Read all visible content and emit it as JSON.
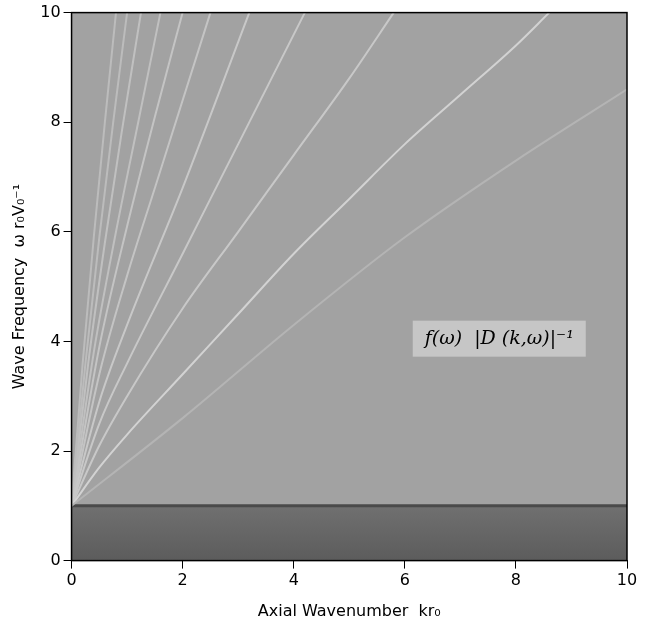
{
  "chart_data": {
    "type": "line",
    "xlabel": "Axial Wavenumber  kr₀",
    "ylabel": "Wave Frequency  ω r₀V₀⁻¹",
    "annotations": [
      "f(ω)  |D (k,ω)|⁻¹"
    ],
    "xlim": [
      0,
      10
    ],
    "ylim": [
      0,
      10
    ],
    "xticks": [
      0,
      2,
      4,
      6,
      8,
      10
    ],
    "yticks": [
      0,
      2,
      4,
      6,
      8,
      10
    ],
    "grid": false,
    "cutoff_frequency": 1,
    "series": [
      {
        "color": "#b4b4b4",
        "x": [
          0,
          2,
          4,
          6,
          8,
          10
        ],
        "values": [
          1,
          2.6,
          4.3,
          5.9,
          7.3,
          8.6
        ]
      },
      {
        "color": "#d2d2d2",
        "x": [
          0,
          0.5,
          1,
          2,
          3,
          4,
          5,
          6,
          7,
          8,
          8.6
        ],
        "values": [
          1,
          1.7,
          2.3,
          3.4,
          4.5,
          5.6,
          6.6,
          7.6,
          8.5,
          9.4,
          10
        ]
      },
      {
        "color": "#c8c8c8",
        "x": [
          0,
          0.5,
          1,
          2,
          3,
          4,
          5,
          5.8
        ],
        "values": [
          1,
          2.1,
          3.0,
          4.6,
          6.0,
          7.4,
          8.8,
          10
        ]
      },
      {
        "color": "#c8c8c8",
        "x": [
          0,
          0.5,
          1,
          2,
          3,
          4.2
        ],
        "values": [
          1,
          2.5,
          3.6,
          5.6,
          7.6,
          10
        ]
      },
      {
        "color": "#c8c8c8",
        "x": [
          0,
          0.5,
          1,
          2,
          3.2
        ],
        "values": [
          1,
          2.9,
          4.3,
          6.8,
          10
        ]
      },
      {
        "color": "#c4c4c4",
        "x": [
          0,
          0.5,
          1,
          1.5,
          2.5
        ],
        "values": [
          1,
          3.4,
          5.2,
          6.8,
          10
        ]
      },
      {
        "color": "#c4c4c4",
        "x": [
          0,
          0.5,
          1,
          1.5,
          2.0
        ],
        "values": [
          1,
          3.9,
          6.1,
          8.1,
          10
        ]
      },
      {
        "color": "#c0c0c0",
        "x": [
          0,
          0.4,
          0.8,
          1.2,
          1.6
        ],
        "values": [
          1,
          3.8,
          6.0,
          8.0,
          10
        ]
      },
      {
        "color": "#c0c0c0",
        "x": [
          0,
          0.3,
          0.6,
          0.9,
          1.25
        ],
        "values": [
          1,
          3.6,
          5.8,
          7.8,
          10
        ]
      },
      {
        "color": "#bcbcbc",
        "x": [
          0,
          0.25,
          0.5,
          0.75,
          1.0
        ],
        "values": [
          1,
          3.6,
          5.9,
          8.0,
          10
        ]
      },
      {
        "color": "#bcbcbc",
        "x": [
          0,
          0.2,
          0.4,
          0.6,
          0.8
        ],
        "values": [
          1,
          3.6,
          5.9,
          8.0,
          10
        ]
      }
    ]
  }
}
